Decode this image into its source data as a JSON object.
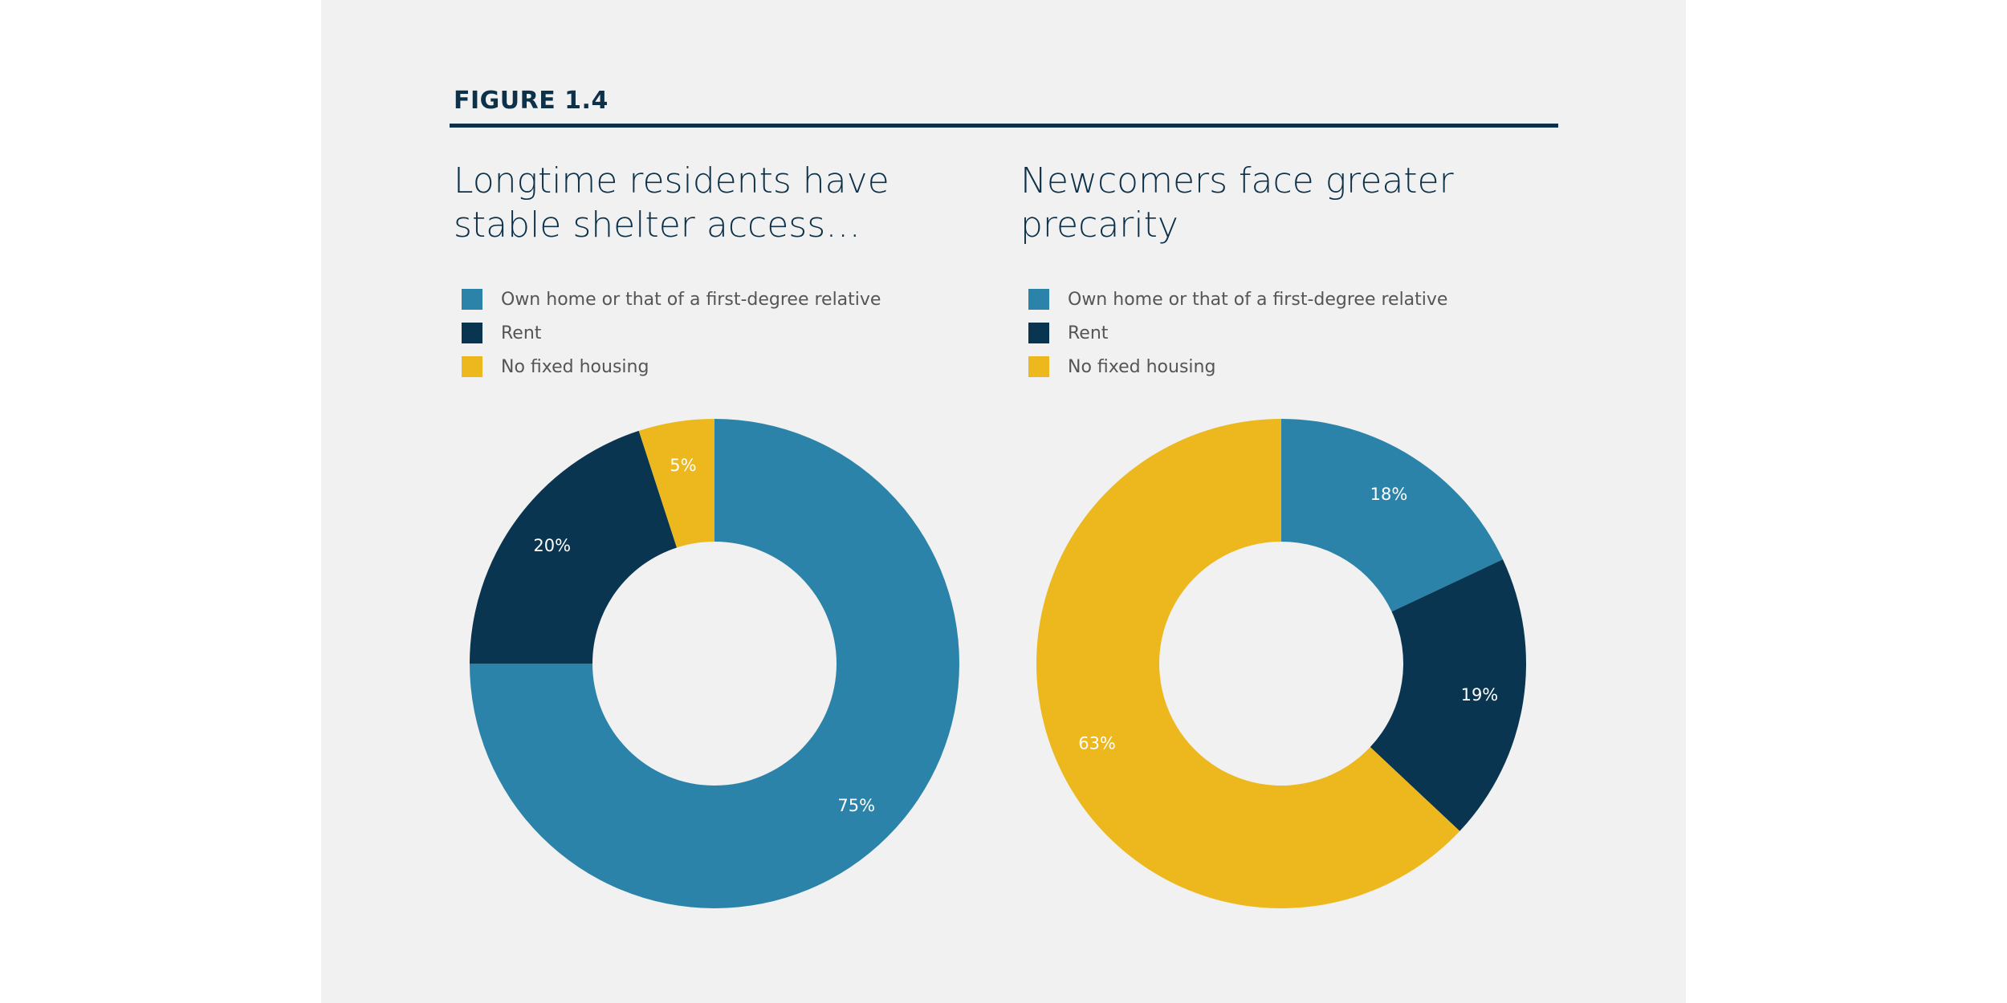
{
  "figure_label": "FIGURE 1.4",
  "colors": {
    "own": "#2b83aa",
    "rent": "#0a3550",
    "no_fixed": "#ecb81e",
    "panel": "#f1f1f1",
    "heading": "#0c3149"
  },
  "charts": [
    {
      "title": "Longtime residents have stable shelter access…",
      "legend": [
        {
          "label": "Own home or that of a first-degree relative",
          "color": "#2b83aa"
        },
        {
          "label": "Rent",
          "color": "#0a3550"
        },
        {
          "label": "No fixed housing",
          "color": "#ecb81e"
        }
      ]
    },
    {
      "title": "Newcomers face greater precarity",
      "legend": [
        {
          "label": "Own home or that of a first-degree relative",
          "color": "#2b83aa"
        },
        {
          "label": "Rent",
          "color": "#0a3550"
        },
        {
          "label": "No fixed housing",
          "color": "#ecb81e"
        }
      ]
    }
  ],
  "chart_data": [
    {
      "type": "pie",
      "donut": true,
      "title": "Longtime residents have stable shelter access…",
      "categories": [
        "Own home or that of a first-degree relative",
        "Rent",
        "No fixed housing"
      ],
      "values": [
        75,
        20,
        5
      ],
      "labels": [
        "75%",
        "20%",
        "5%"
      ],
      "colors": [
        "#2b83aa",
        "#0a3550",
        "#ecb81e"
      ],
      "legend": "top-left"
    },
    {
      "type": "pie",
      "donut": true,
      "title": "Newcomers face greater precarity",
      "categories": [
        "Own home or that of a first-degree relative",
        "Rent",
        "No fixed housing"
      ],
      "values": [
        18,
        19,
        63
      ],
      "labels": [
        "18%",
        "19%",
        "63%"
      ],
      "colors": [
        "#2b83aa",
        "#0a3550",
        "#ecb81e"
      ],
      "legend": "top-left"
    }
  ]
}
